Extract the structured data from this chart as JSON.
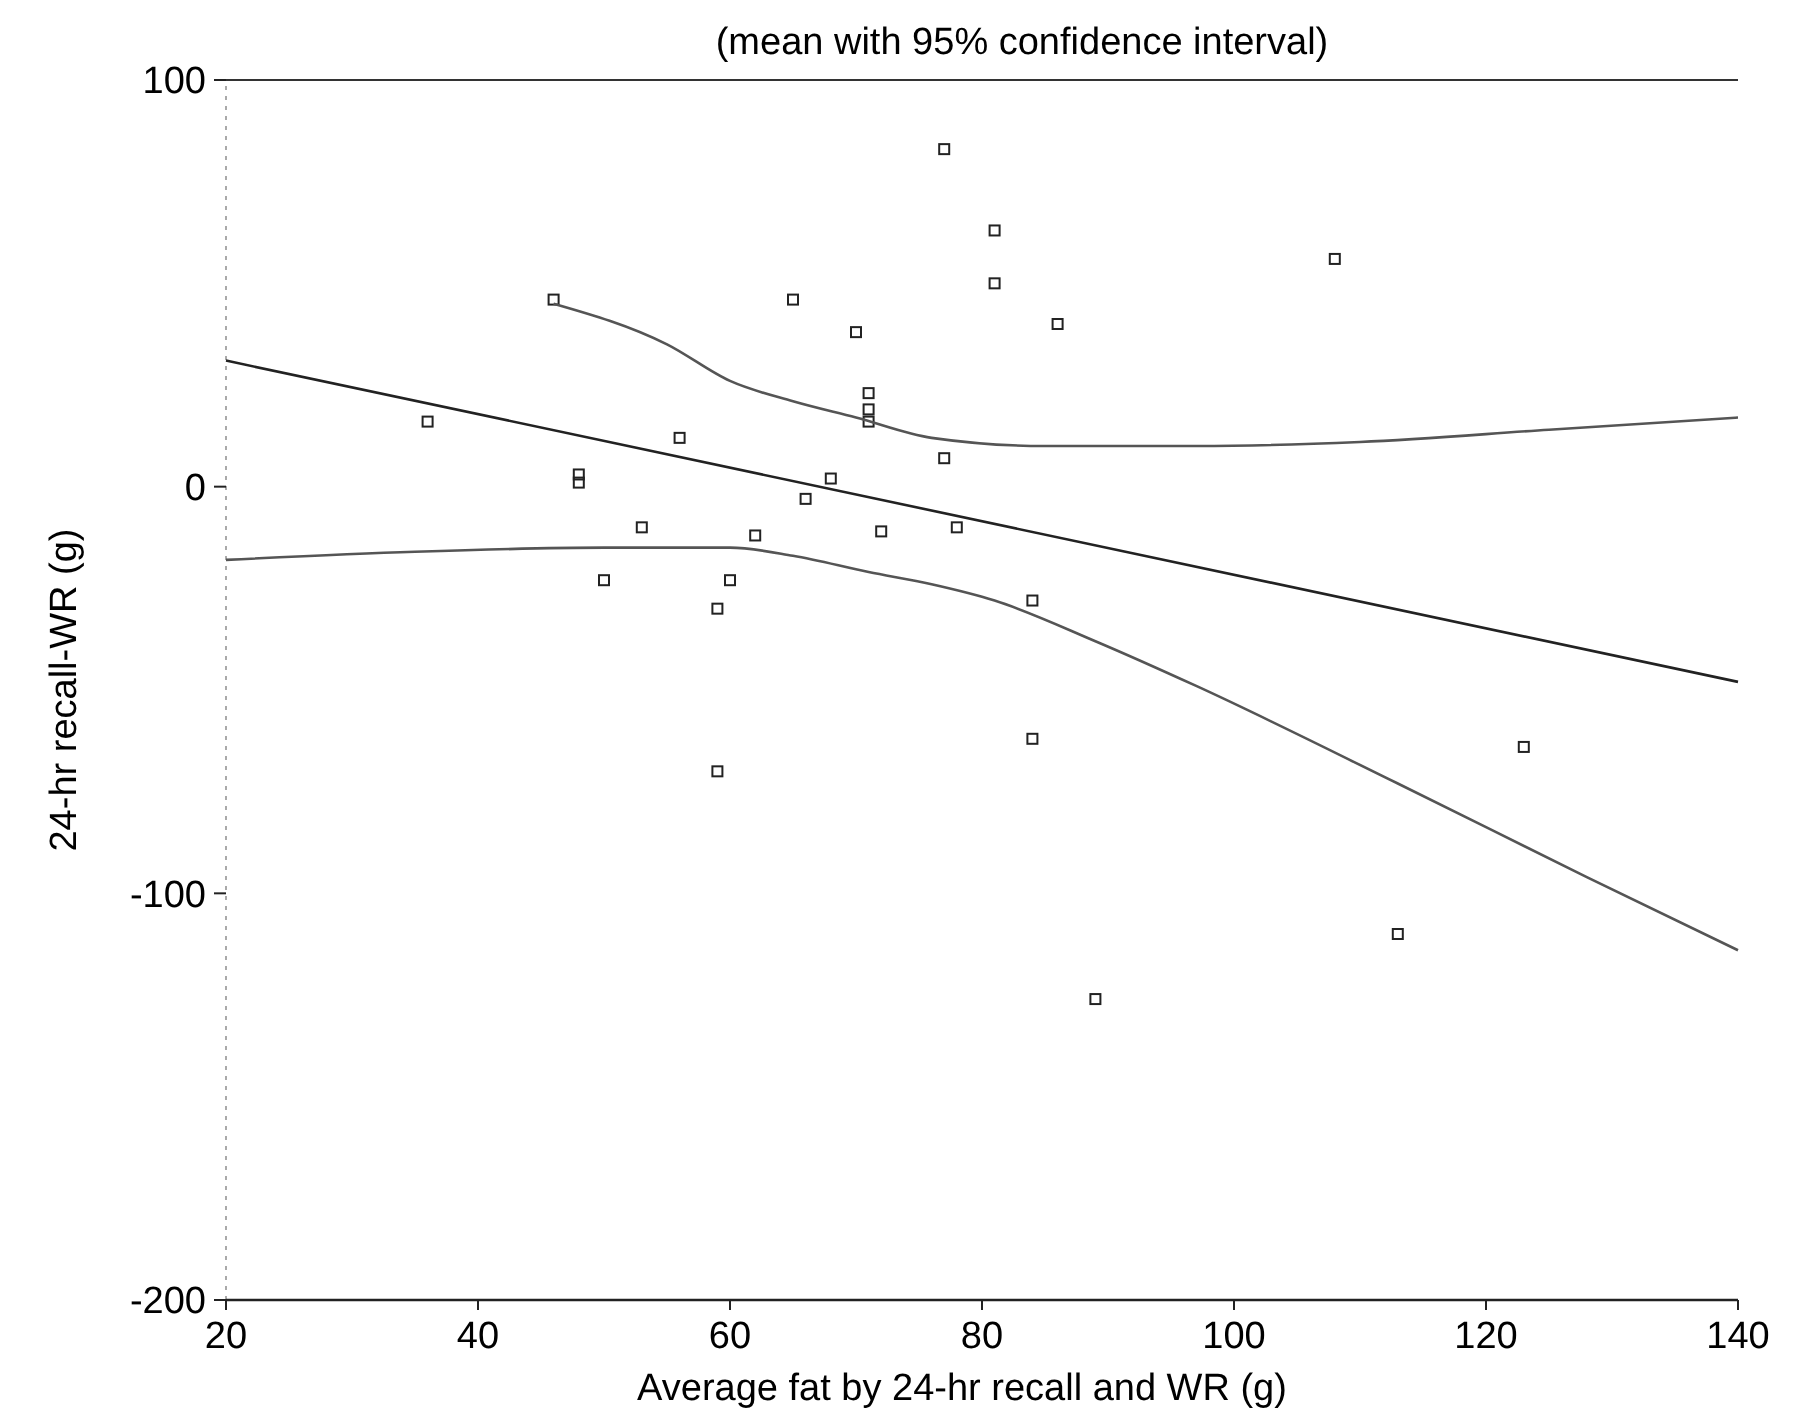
{
  "chart_data": {
    "type": "scatter",
    "title": "(mean with 95% confidence interval)",
    "xlabel": "Average fat by 24-hr recall and WR (g)",
    "ylabel": "24-hr recall-WR (g)",
    "xlim": [
      20,
      140
    ],
    "xticks": [
      20,
      40,
      60,
      80,
      100,
      120,
      140
    ],
    "ylim": [
      -200,
      100
    ],
    "yticks": [
      -200,
      -100,
      0,
      100
    ],
    "grid": false,
    "marker": "square",
    "series": [
      {
        "color": "#222222",
        "x": [
          77,
          46,
          65,
          70,
          71,
          71,
          71,
          36,
          56,
          77,
          48,
          48,
          68,
          66,
          53,
          72,
          78,
          62,
          50,
          60,
          59,
          81,
          81,
          108,
          86,
          84,
          84,
          59,
          123,
          113,
          89
        ],
        "values": [
          83,
          46,
          46,
          38,
          23,
          19,
          16,
          16,
          12,
          7,
          3,
          1,
          2,
          -3,
          -10,
          -11,
          -10,
          -12,
          -23,
          -23,
          -30,
          63,
          50,
          56,
          40,
          -28,
          -62,
          -70,
          -64,
          -110,
          -126
        ]
      },
      {
        "type": "line",
        "color": "#222222",
        "marker": "none",
        "line_style": "solid",
        "x": [
          20,
          140
        ],
        "values": [
          31,
          -48
        ]
      },
      {
        "type": "line",
        "color": "#555555",
        "marker": "none",
        "line_style": "solid",
        "x": [
          46,
          55,
          60,
          65,
          70,
          76,
          85,
          97,
          110,
          125,
          140
        ],
        "values": [
          45,
          35,
          26,
          21,
          17,
          12,
          10,
          10,
          11,
          14,
          17
        ]
      },
      {
        "type": "line",
        "color": "#555555",
        "marker": "none",
        "line_style": "solid",
        "x": [
          20,
          35,
          50,
          60,
          65,
          71,
          76,
          81,
          89,
          97,
          113,
          128,
          140
        ],
        "values": [
          -18,
          -16,
          -15,
          -15,
          -17,
          -21,
          -24,
          -28,
          -38,
          -49,
          -73,
          -96,
          -114
        ]
      }
    ]
  }
}
